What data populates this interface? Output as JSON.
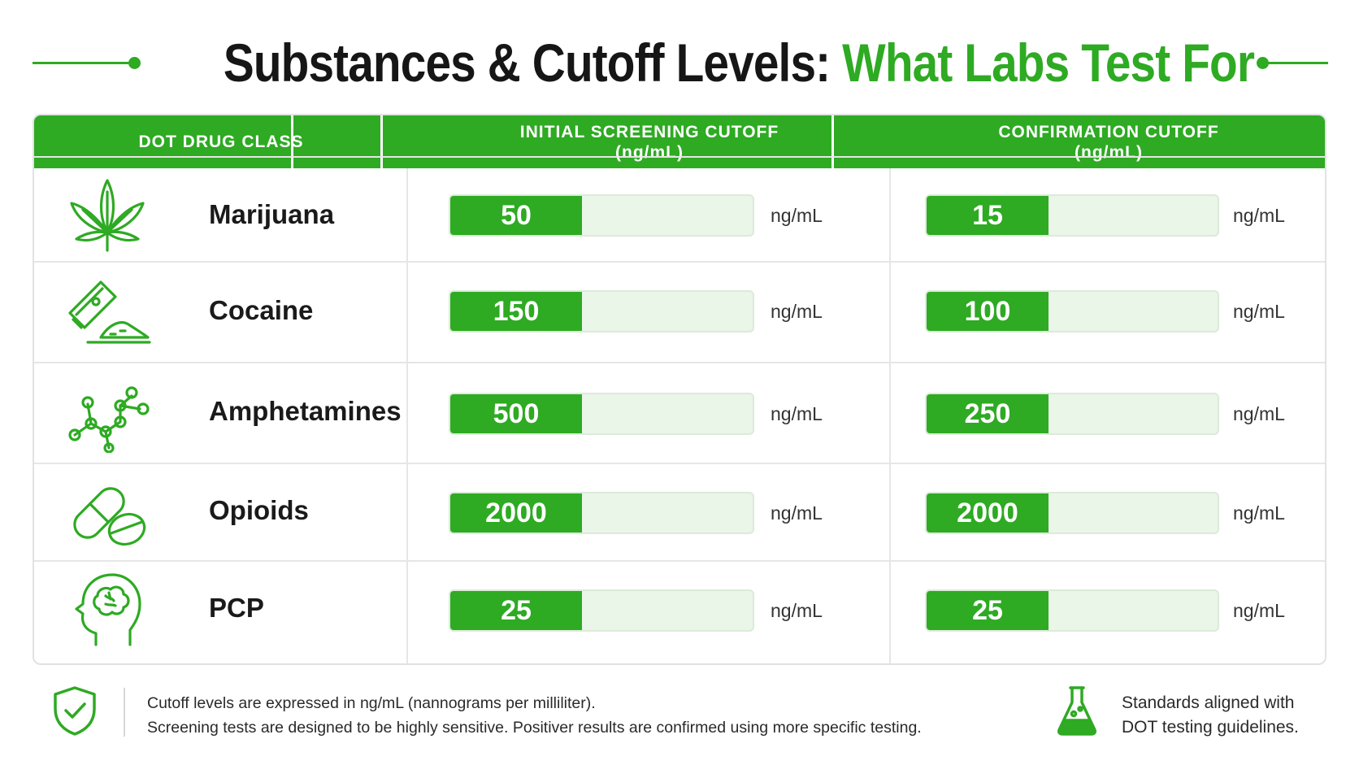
{
  "title": {
    "part1": "Substances & Cutoff Levels:",
    "part2": "What Labs Test For"
  },
  "table": {
    "headers": {
      "drug_class": "DOT DRUG CLASS",
      "initial_line1": "INITIAL SCREENING CUTOFF",
      "initial_line2": "(ng/mL)",
      "confirm_line1": "CONFIRMATION CUTOFF",
      "confirm_line2": "(ng/mL)"
    },
    "unit": "ng/mL",
    "rows": [
      {
        "name": "Marijuana",
        "icon": "cannabis-leaf-icon",
        "initial": "50",
        "confirm": "15"
      },
      {
        "name": "Cocaine",
        "icon": "razor-powder-icon",
        "initial": "150",
        "confirm": "100"
      },
      {
        "name": "Amphetamines",
        "icon": "molecule-icon",
        "initial": "500",
        "confirm": "250"
      },
      {
        "name": "Opioids",
        "icon": "pills-icon",
        "initial": "2000",
        "confirm": "2000"
      },
      {
        "name": "PCP",
        "icon": "brain-head-icon",
        "initial": "25",
        "confirm": "25"
      }
    ]
  },
  "footer": {
    "note_line1": "Cutoff levels are expressed in ng/mL (nannograms per milliliter).",
    "note_line2": "Screening tests are designed to be highly sensitive. Positiver results are confirmed using more specific testing.",
    "standards_line1": "Standards aligned with",
    "standards_line2": "DOT testing guidelines."
  },
  "colors": {
    "accent_green": "#2eaa23",
    "bar_track": "#eaf6e8",
    "text_dark": "#161616"
  }
}
